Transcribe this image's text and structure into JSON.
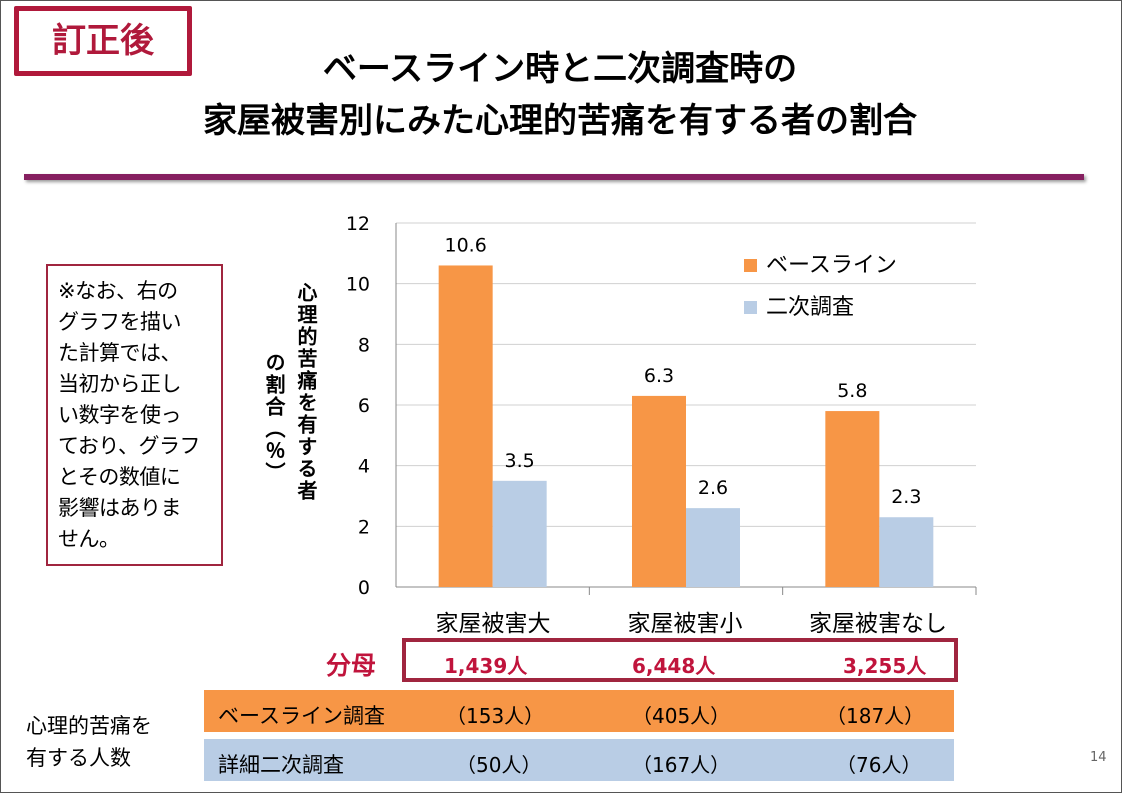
{
  "tag": "訂正後",
  "title": {
    "line1": "ベースライン時と二次調査時の",
    "line2": "家屋被害別にみた心理的苦痛を有する者の割合"
  },
  "note": [
    "※なお、右の",
    "グラフを描い",
    "た計算では、",
    "当初から正し",
    "い数字を使っ",
    "ており、グラフ",
    "とその数値に",
    "影響はありま",
    "せん。"
  ],
  "chart_data": {
    "type": "bar",
    "categories": [
      "家屋被害大",
      "家屋被害小",
      "家屋被害なし"
    ],
    "series": [
      {
        "name": "ベースライン",
        "values": [
          10.6,
          6.3,
          5.8
        ],
        "color": "#f79646"
      },
      {
        "name": "二次調査",
        "values": [
          3.5,
          2.6,
          2.3
        ],
        "color": "#b9cde5"
      }
    ],
    "ylabel_main": "心理的苦痛を有する者",
    "ylabel_sub": "の割合（％）",
    "ylim": [
      0,
      12
    ],
    "yticks": [
      0,
      2,
      4,
      6,
      8,
      10,
      12
    ],
    "grid": true,
    "legend_position": "top-right"
  },
  "denominator": {
    "label": "分母",
    "values": [
      "1,439人",
      "6,448人",
      "3,255人"
    ]
  },
  "counts": {
    "label_line1": "心理的苦痛を",
    "label_line2": "有する人数",
    "baseline": {
      "label": "ベースライン調査",
      "values": [
        "（153人）",
        "（405人）",
        "（187人）"
      ]
    },
    "detail": {
      "label": "詳細二次調査",
      "values": [
        "（50人）",
        "（167人）",
        "（76人）"
      ]
    }
  },
  "page_number": "14"
}
